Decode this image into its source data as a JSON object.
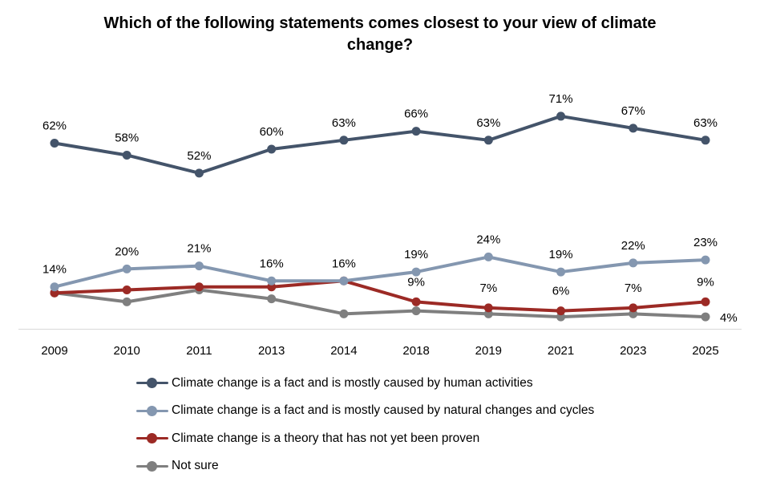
{
  "title_lines": [
    "Which of the following statements comes closest to your view of climate",
    "change?"
  ],
  "chart_data": {
    "type": "line",
    "title": "Which of the following statements comes closest to your view of climate change?",
    "categories": [
      "2009",
      "2010",
      "2011",
      "2013",
      "2014",
      "2018",
      "2019",
      "2021",
      "2023",
      "2025"
    ],
    "xlabel": "",
    "ylabel": "",
    "ylim": [
      0,
      75
    ],
    "grid": false,
    "legend_position": "bottom",
    "series": [
      {
        "name": "Climate change is a fact and is mostly caused by human activities",
        "color": "#44546a",
        "values": [
          62,
          58,
          52,
          60,
          63,
          66,
          63,
          71,
          67,
          63
        ],
        "labels": [
          "62%",
          "58%",
          "52%",
          "60%",
          "63%",
          "66%",
          "63%",
          "71%",
          "67%",
          "63%"
        ]
      },
      {
        "name": "Climate change is a fact and is mostly caused by natural changes and cycles",
        "color": "#8497b0",
        "values": [
          14,
          20,
          21,
          16,
          16,
          19,
          24,
          19,
          22,
          23
        ],
        "labels": [
          "14%",
          "20%",
          "21%",
          "16%",
          "16%",
          "19%",
          "24%",
          "19%",
          "22%",
          "23%"
        ]
      },
      {
        "name": "Climate change is a theory that has not yet been proven",
        "color": "#9c2a25",
        "values": [
          12,
          13,
          14,
          14,
          16,
          9,
          7,
          6,
          7,
          9
        ],
        "labels": [
          "",
          "",
          "",
          "",
          "",
          "9%",
          "7%",
          "6%",
          "7%",
          "9%"
        ]
      },
      {
        "name": "Not sure",
        "color": "#7f7f7f",
        "values": [
          12,
          9,
          13,
          10,
          5,
          6,
          5,
          4,
          5,
          4
        ],
        "labels": [
          "",
          "",
          "",
          "",
          "",
          "",
          "",
          "",
          "",
          "4%"
        ]
      }
    ]
  }
}
